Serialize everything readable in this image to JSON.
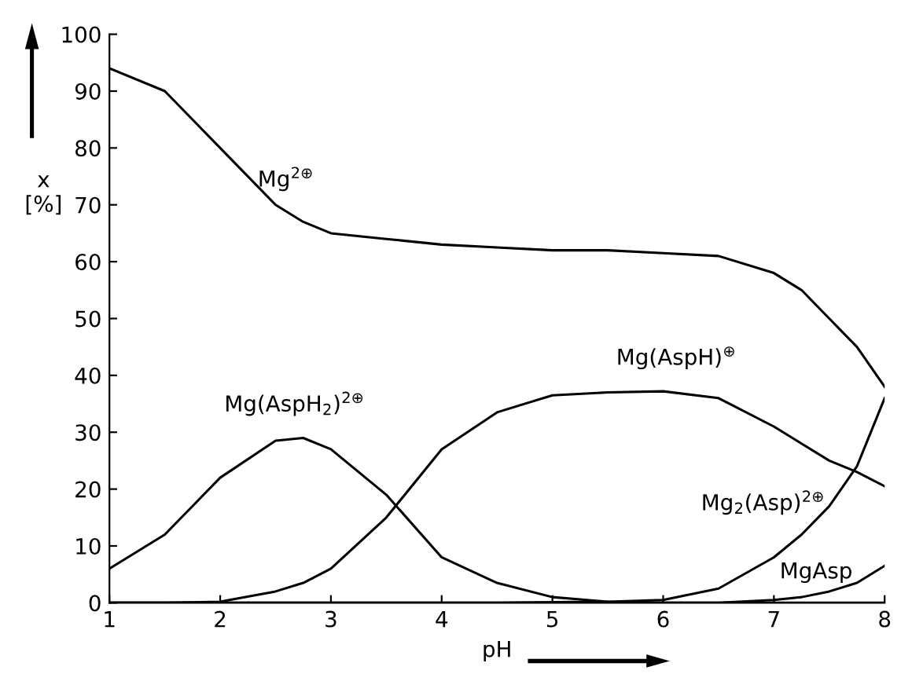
{
  "chart_data": {
    "type": "line",
    "xlabel": "pH",
    "ylabel": "x\n[%]",
    "x": [
      1,
      1.5,
      2,
      2.5,
      2.75,
      3,
      3.5,
      4,
      4.5,
      5,
      5.5,
      6,
      6.5,
      7,
      7.25,
      7.5,
      7.75,
      8
    ],
    "series": [
      {
        "name": "Mg$^{2⊕}$",
        "color": "#000000",
        "values": [
          94,
          90,
          80,
          70,
          67,
          65,
          64,
          63,
          62.5,
          62,
          62,
          61.5,
          61,
          58,
          55,
          50,
          45,
          38
        ]
      },
      {
        "name": "Mg(AspH$_{2}$)$^{2⊕}$",
        "color": "#000000",
        "values": [
          6,
          12,
          22,
          28.5,
          29,
          27,
          19,
          8,
          3.5,
          1,
          0.2,
          0,
          0,
          0,
          0,
          0,
          0,
          0
        ]
      },
      {
        "name": "Mg(AspH)$^{⊕}$",
        "color": "#000000",
        "values": [
          0,
          0,
          0.2,
          2,
          3.5,
          6,
          15,
          27,
          33.5,
          36.5,
          37,
          37.2,
          36,
          31,
          28,
          25,
          23,
          20.5
        ]
      },
      {
        "name": "Mg$_{2}$(Asp)$^{2⊕}$",
        "color": "#000000",
        "values": [
          0,
          0,
          0,
          0,
          0,
          0,
          0,
          0,
          0,
          0.1,
          0.2,
          0.5,
          2.5,
          8,
          12,
          17,
          24,
          36
        ]
      },
      {
        "name": "MgAsp",
        "color": "#000000",
        "values": [
          0,
          0,
          0,
          0,
          0,
          0,
          0,
          0,
          0,
          0,
          0,
          0,
          0,
          0.5,
          1,
          2,
          3.5,
          6.5
        ]
      }
    ],
    "xlim": [
      1,
      8
    ],
    "xticks": [
      1,
      2,
      3,
      4,
      5,
      6,
      7,
      8
    ],
    "ylim": [
      0,
      100
    ],
    "yticks": [
      0,
      10,
      20,
      30,
      40,
      50,
      60,
      70,
      80,
      90,
      100
    ],
    "grid": false,
    "legend": false,
    "marker": "none",
    "line_style": "solid"
  }
}
